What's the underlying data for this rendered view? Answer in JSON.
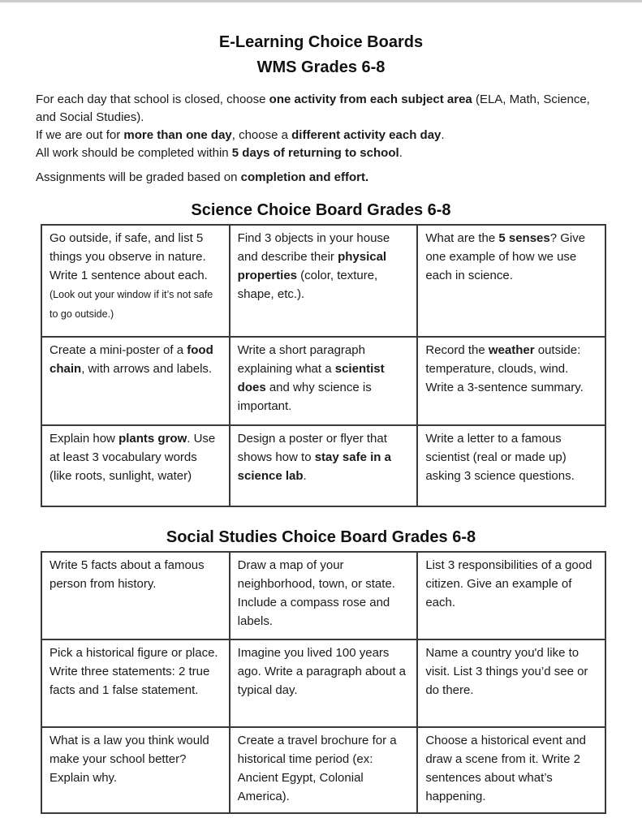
{
  "page": {
    "title_line1": "E-Learning Choice Boards",
    "title_line2": "WMS Grades 6-8"
  },
  "intro": {
    "p1": [
      {
        "t": "For each day that school is closed, choose "
      },
      {
        "t": "one activity from each subject area",
        "b": 1
      },
      {
        "t": " (ELA, Math, Science, and Social Studies)."
      }
    ],
    "p2": [
      {
        "t": "If we are out for "
      },
      {
        "t": "more than one day",
        "b": 1
      },
      {
        "t": ", choose a "
      },
      {
        "t": "different activity each day",
        "b": 1
      },
      {
        "t": "."
      }
    ],
    "p3": [
      {
        "t": "All work should be completed within "
      },
      {
        "t": "5 days of returning to school",
        "b": 1
      },
      {
        "t": "."
      }
    ],
    "p4": [
      {
        "t": "Assignments will be graded based on "
      },
      {
        "t": "completion and effort.",
        "b": 1
      }
    ]
  },
  "boards": [
    {
      "heading": "Science Choice Board Grades 6-8",
      "rows": [
        [
          [
            {
              "t": "Go outside, if safe, and list 5 things you observe in nature. Write 1 sentence about each. "
            },
            {
              "t": "(Look out your window if it’s not safe to go outside.)",
              "s": 1
            }
          ],
          [
            {
              "t": "Find 3 objects in your house and describe their "
            },
            {
              "t": "physical properties",
              "b": 1
            },
            {
              "t": " (color, texture, shape, etc.)."
            }
          ],
          [
            {
              "t": "What are the "
            },
            {
              "t": "5 senses",
              "b": 1
            },
            {
              "t": "? Give one example of how we use each in science."
            }
          ]
        ],
        [
          [
            {
              "t": "Create a mini-poster of a "
            },
            {
              "t": "food chain",
              "b": 1
            },
            {
              "t": ", with arrows and labels."
            }
          ],
          [
            {
              "t": "Write a short paragraph explaining what a "
            },
            {
              "t": "scientist does",
              "b": 1
            },
            {
              "t": " and why science is important."
            }
          ],
          [
            {
              "t": "Record the "
            },
            {
              "t": "weather",
              "b": 1
            },
            {
              "t": " outside: temperature, clouds, wind. Write a 3-sentence summary."
            }
          ]
        ],
        [
          [
            {
              "t": "Explain how "
            },
            {
              "t": "plants grow",
              "b": 1
            },
            {
              "t": ". Use at least 3 vocabulary words (like roots, sunlight, water)"
            }
          ],
          [
            {
              "t": "Design a poster or flyer that shows how to "
            },
            {
              "t": "stay safe in a science lab",
              "b": 1
            },
            {
              "t": "."
            }
          ],
          [
            {
              "t": "Write a letter to a famous scientist (real or made up) asking 3 science questions."
            }
          ]
        ]
      ]
    },
    {
      "heading": "Social Studies Choice Board Grades 6-8",
      "rows": [
        [
          [
            {
              "t": "Write 5 facts about a famous person from history."
            }
          ],
          [
            {
              "t": "Draw a map of your neighborhood, town, or state. Include a compass rose and labels."
            }
          ],
          [
            {
              "t": "List 3 responsibilities of a good citizen. Give an example of each."
            }
          ]
        ],
        [
          [
            {
              "t": "Pick a historical figure or place. Write three statements: 2 true facts and 1 false statement."
            }
          ],
          [
            {
              "t": "Imagine you lived 100 years ago. Write a paragraph about a typical day."
            }
          ],
          [
            {
              "t": "Name a country you'd like to visit. List 3 things you’d see or do there."
            }
          ]
        ],
        [
          [
            {
              "t": "What is a law you think would make your school better? Explain why."
            }
          ],
          [
            {
              "t": "Create a travel brochure for a historical time period (ex: Ancient Egypt, Colonial America)."
            }
          ],
          [
            {
              "t": "Choose a historical event and draw a scene from it. Write 2 sentences about what’s happening."
            }
          ]
        ]
      ]
    }
  ]
}
